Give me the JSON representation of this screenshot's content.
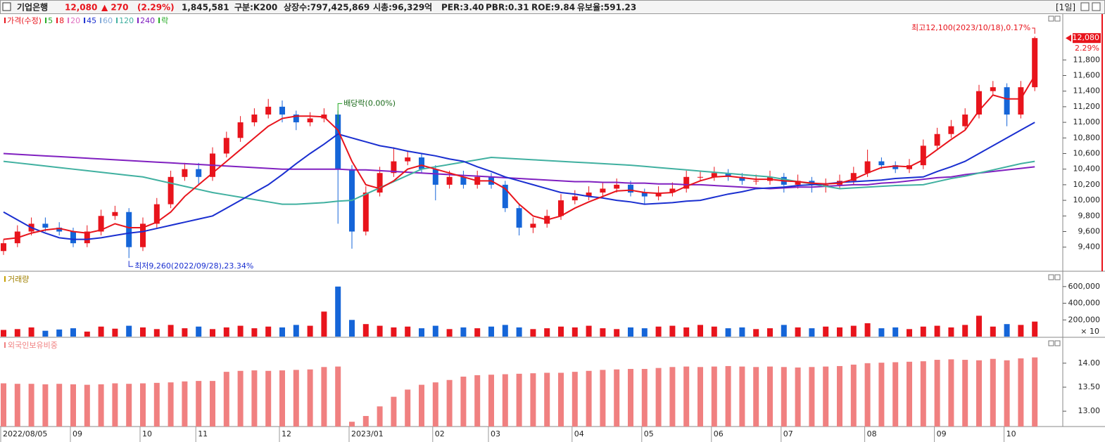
{
  "header": {
    "name": "기업은행",
    "price": "12,080",
    "change": "▲ 270",
    "change_pct": "(2.29%)",
    "volume": "1,845,581",
    "market": "구분:K200",
    "shares": "상장수:797,425,869",
    "cap": "시총:96,329억",
    "per": "PER:3.40",
    "pbr": "PBR:0.31",
    "roe": "ROE:9.84",
    "reserve": "유보율:591.23",
    "period": "[1일]"
  },
  "chart_data": {
    "type": "candlestick",
    "legend": [
      {
        "name": "가격(수정)",
        "color": "#e8141c"
      },
      {
        "name": "5",
        "color": "#22aa22"
      },
      {
        "name": "8",
        "color": "#e8141c"
      },
      {
        "name": "20",
        "color": "#e070c0"
      },
      {
        "name": "45",
        "color": "#1a2fd0"
      },
      {
        "name": "60",
        "color": "#7fa8d8"
      },
      {
        "name": "120",
        "color": "#40b0a0"
      },
      {
        "name": "240",
        "color": "#8020c0"
      },
      {
        "name": "락",
        "color": "#22aa22"
      }
    ],
    "up_color": "#e8141c",
    "down_color": "#1565d8",
    "annotations": {
      "high": "최고12,100(2023/10/18),0.17%",
      "low": "최저9,260(2022/09/28),23.34%",
      "dividend": "배당락(0.00%)",
      "last": "12,080",
      "last_pct": "2.29%"
    },
    "categories": [
      "2022/08/05",
      null,
      null,
      null,
      null,
      "09",
      null,
      null,
      null,
      null,
      "10",
      null,
      null,
      null,
      "11",
      null,
      null,
      null,
      null,
      null,
      "12",
      null,
      null,
      null,
      null,
      "2023/01",
      null,
      null,
      null,
      null,
      null,
      "02",
      null,
      null,
      null,
      "03",
      null,
      null,
      null,
      null,
      null,
      "04",
      null,
      null,
      null,
      null,
      "05",
      null,
      null,
      null,
      null,
      "06",
      null,
      null,
      null,
      null,
      "07",
      null,
      null,
      null,
      null,
      null,
      "08",
      null,
      null,
      null,
      null,
      "09",
      null,
      null,
      null,
      null,
      "10",
      null,
      null
    ],
    "candles": [
      [
        9350,
        9500,
        9300,
        9450
      ],
      [
        9450,
        9680,
        9400,
        9600
      ],
      [
        9600,
        9780,
        9550,
        9700
      ],
      [
        9700,
        9780,
        9600,
        9650
      ],
      [
        9650,
        9720,
        9550,
        9600
      ],
      [
        9600,
        9650,
        9400,
        9450
      ],
      [
        9450,
        9680,
        9400,
        9600
      ],
      [
        9600,
        9880,
        9550,
        9800
      ],
      [
        9800,
        9930,
        9750,
        9850
      ],
      [
        9850,
        9900,
        9260,
        9400
      ],
      [
        9400,
        9780,
        9350,
        9700
      ],
      [
        9700,
        10030,
        9650,
        9950
      ],
      [
        9950,
        10380,
        9900,
        10300
      ],
      [
        10300,
        10480,
        10250,
        10400
      ],
      [
        10400,
        10480,
        10200,
        10300
      ],
      [
        10300,
        10680,
        10250,
        10600
      ],
      [
        10600,
        10880,
        10550,
        10800
      ],
      [
        10800,
        11080,
        10750,
        11000
      ],
      [
        11000,
        11180,
        10950,
        11100
      ],
      [
        11100,
        11300,
        11050,
        11200
      ],
      [
        11200,
        11280,
        11000,
        11100
      ],
      [
        11100,
        11150,
        10900,
        11000
      ],
      [
        11000,
        11130,
        10950,
        11050
      ],
      [
        11050,
        11180,
        11000,
        11100
      ],
      [
        11100,
        11150,
        9700,
        10400
      ],
      [
        10400,
        10450,
        9380,
        9600
      ],
      [
        9600,
        10180,
        9550,
        10100
      ],
      [
        10100,
        10430,
        10050,
        10350
      ],
      [
        10350,
        10680,
        10300,
        10500
      ],
      [
        10500,
        10630,
        10450,
        10550
      ],
      [
        10550,
        10600,
        10350,
        10400
      ],
      [
        10400,
        10450,
        10000,
        10200
      ],
      [
        10200,
        10380,
        10150,
        10300
      ],
      [
        10300,
        10380,
        10150,
        10200
      ],
      [
        10200,
        10380,
        10150,
        10300
      ],
      [
        10300,
        10350,
        10150,
        10200
      ],
      [
        10200,
        10250,
        9850,
        9900
      ],
      [
        9900,
        9950,
        9550,
        9650
      ],
      [
        9650,
        9780,
        9580,
        9700
      ],
      [
        9700,
        9880,
        9650,
        9800
      ],
      [
        9800,
        10080,
        9750,
        10000
      ],
      [
        10000,
        10130,
        9950,
        10050
      ],
      [
        10050,
        10180,
        10000,
        10100
      ],
      [
        10100,
        10230,
        10050,
        10150
      ],
      [
        10150,
        10280,
        10100,
        10200
      ],
      [
        10200,
        10250,
        10050,
        10100
      ],
      [
        10100,
        10150,
        9950,
        10050
      ],
      [
        10050,
        10180,
        10000,
        10100
      ],
      [
        10100,
        10230,
        10050,
        10150
      ],
      [
        10150,
        10380,
        10100,
        10300
      ],
      [
        10300,
        10380,
        10250,
        10300
      ],
      [
        10300,
        10430,
        10250,
        10350
      ],
      [
        10350,
        10400,
        10250,
        10300
      ],
      [
        10300,
        10350,
        10200,
        10250
      ],
      [
        10250,
        10330,
        10200,
        10250
      ],
      [
        10250,
        10380,
        10200,
        10300
      ],
      [
        10300,
        10350,
        10100,
        10200
      ],
      [
        10200,
        10330,
        10150,
        10250
      ],
      [
        10250,
        10300,
        10100,
        10200
      ],
      [
        10200,
        10280,
        10100,
        10200
      ],
      [
        10200,
        10330,
        10150,
        10250
      ],
      [
        10250,
        10430,
        10200,
        10350
      ],
      [
        10350,
        10650,
        10300,
        10500
      ],
      [
        10500,
        10550,
        10400,
        10450
      ],
      [
        10450,
        10500,
        10350,
        10400
      ],
      [
        10400,
        10530,
        10350,
        10450
      ],
      [
        10450,
        10780,
        10400,
        10700
      ],
      [
        10700,
        10930,
        10650,
        10850
      ],
      [
        10850,
        11030,
        10800,
        10950
      ],
      [
        10950,
        11180,
        10900,
        11100
      ],
      [
        11100,
        11480,
        11050,
        11400
      ],
      [
        11400,
        11530,
        11350,
        11450
      ],
      [
        11450,
        11500,
        10950,
        11100
      ],
      [
        11100,
        11530,
        11050,
        11450
      ],
      [
        11450,
        12100,
        11400,
        12080
      ]
    ],
    "ma": [
      {
        "color": "#8020c0",
        "values": [
          10600,
          10590,
          10580,
          10570,
          10560,
          10550,
          10540,
          10530,
          10520,
          10510,
          10500,
          10490,
          10480,
          10470,
          10460,
          10450,
          10440,
          10430,
          10420,
          10410,
          10400,
          10400,
          10400,
          10400,
          10400,
          10390,
          10390,
          10380,
          10370,
          10360,
          10350,
          10340,
          10330,
          10320,
          10310,
          10300,
          10290,
          10280,
          10270,
          10260,
          10250,
          10240,
          10240,
          10230,
          10230,
          10220,
          10220,
          10210,
          10210,
          10200,
          10200,
          10190,
          10180,
          10170,
          10160,
          10150,
          10160,
          10170,
          10170,
          10180,
          10190,
          10200,
          10200,
          10220,
          10230,
          10250,
          10270,
          10290,
          10300,
          10330,
          10350,
          10370,
          10390,
          10410,
          10430
        ]
      },
      {
        "color": "#40b0a0",
        "values": [
          10500,
          10480,
          10460,
          10440,
          10420,
          10400,
          10380,
          10360,
          10340,
          10320,
          10300,
          10260,
          10220,
          10180,
          10140,
          10100,
          10070,
          10040,
          10010,
          9980,
          9950,
          9950,
          9960,
          9970,
          9990,
          10000,
          10080,
          10160,
          10240,
          10320,
          10400,
          10430,
          10460,
          10490,
          10520,
          10550,
          10540,
          10530,
          10520,
          10510,
          10500,
          10490,
          10480,
          10470,
          10460,
          10450,
          10435,
          10420,
          10405,
          10390,
          10375,
          10360,
          10345,
          10330,
          10315,
          10300,
          10270,
          10240,
          10210,
          10180,
          10150,
          10160,
          10170,
          10180,
          10190,
          10195,
          10200,
          10240,
          10280,
          10310,
          10350,
          10390,
          10430,
          10470,
          10500
        ]
      },
      {
        "color": "#1a2fd0",
        "values": [
          9850,
          9750,
          9650,
          9580,
          9520,
          9500,
          9500,
          9520,
          9550,
          9580,
          9600,
          9640,
          9680,
          9720,
          9760,
          9800,
          9900,
          10000,
          10100,
          10200,
          10330,
          10470,
          10600,
          10720,
          10850,
          10800,
          10750,
          10700,
          10670,
          10630,
          10600,
          10570,
          10530,
          10500,
          10430,
          10370,
          10300,
          10250,
          10200,
          10150,
          10100,
          10080,
          10050,
          10030,
          10000,
          9980,
          9950,
          9960,
          9970,
          9990,
          10000,
          10040,
          10080,
          10110,
          10150,
          10160,
          10170,
          10190,
          10200,
          10210,
          10230,
          10240,
          10250,
          10260,
          10280,
          10290,
          10300,
          10370,
          10430,
          10500,
          10600,
          10700,
          10800,
          10900,
          11000
        ]
      },
      {
        "color": "#e8141c",
        "values": [
          9500,
          9520,
          9580,
          9620,
          9640,
          9600,
          9580,
          9620,
          9700,
          9650,
          9650,
          9720,
          9850,
          10050,
          10200,
          10350,
          10500,
          10650,
          10800,
          10950,
          11050,
          11080,
          11080,
          11070,
          10900,
          10500,
          10200,
          10150,
          10250,
          10400,
          10450,
          10400,
          10350,
          10300,
          10250,
          10250,
          10150,
          9950,
          9800,
          9750,
          9800,
          9900,
          9980,
          10050,
          10120,
          10130,
          10100,
          10090,
          10100,
          10180,
          10250,
          10300,
          10310,
          10290,
          10270,
          10270,
          10250,
          10240,
          10220,
          10210,
          10220,
          10270,
          10350,
          10420,
          10440,
          10430,
          10520,
          10650,
          10780,
          10900,
          11150,
          11350,
          11300,
          11300,
          11600
        ]
      }
    ],
    "ylim": [
      9100,
      12370
    ],
    "yticks": [
      {
        "value": 9400,
        "label": "9,400"
      },
      {
        "value": 9600,
        "label": "9,600"
      },
      {
        "value": 9800,
        "label": "9,800"
      },
      {
        "value": 10000,
        "label": "10,000"
      },
      {
        "value": 10200,
        "label": "10,200"
      },
      {
        "value": 10400,
        "label": "10,400"
      },
      {
        "value": 10600,
        "label": "10,600"
      },
      {
        "value": 10800,
        "label": "10,800"
      },
      {
        "value": 11000,
        "label": "11,000"
      },
      {
        "value": 11200,
        "label": "11,200"
      },
      {
        "value": 11400,
        "label": "11,400"
      },
      {
        "value": 11600,
        "label": "11,600"
      },
      {
        "value": 11800,
        "label": "11,800"
      }
    ],
    "volume": {
      "title": "거래량",
      "unit": "× 10",
      "values": [
        80000,
        90000,
        110000,
        70000,
        85000,
        100000,
        60000,
        120000,
        95000,
        130000,
        110000,
        90000,
        140000,
        100000,
        120000,
        90000,
        110000,
        130000,
        100000,
        120000,
        110000,
        140000,
        130000,
        300000,
        600000,
        200000,
        150000,
        130000,
        110000,
        120000,
        100000,
        130000,
        90000,
        110000,
        100000,
        120000,
        140000,
        110000,
        90000,
        100000,
        120000,
        110000,
        130000,
        100000,
        90000,
        110000,
        100000,
        120000,
        130000,
        110000,
        140000,
        120000,
        100000,
        110000,
        90000,
        100000,
        140000,
        110000,
        100000,
        120000,
        110000,
        130000,
        160000,
        100000,
        110000,
        90000,
        120000,
        130000,
        110000,
        140000,
        250000,
        120000,
        150000,
        140000,
        180000
      ],
      "ylim": [
        0,
        750000
      ],
      "yticks": [
        {
          "value": 200000,
          "label": "200,000"
        },
        {
          "value": 400000,
          "label": "400,000"
        },
        {
          "value": 600000,
          "label": "600,000"
        }
      ]
    },
    "foreign": {
      "title": "외국인보유비중",
      "color": "#f08080",
      "values": [
        13.58,
        13.57,
        13.57,
        13.56,
        13.57,
        13.56,
        13.55,
        13.56,
        13.58,
        13.57,
        13.58,
        13.59,
        13.6,
        13.62,
        13.63,
        13.63,
        13.82,
        13.84,
        13.85,
        13.84,
        13.85,
        13.86,
        13.87,
        13.92,
        13.93,
        12.78,
        12.9,
        13.1,
        13.3,
        13.45,
        13.55,
        13.6,
        13.65,
        13.72,
        13.75,
        13.76,
        13.77,
        13.78,
        13.79,
        13.8,
        13.8,
        13.82,
        13.84,
        13.86,
        13.87,
        13.88,
        13.88,
        13.9,
        13.92,
        13.93,
        13.92,
        13.93,
        13.94,
        13.93,
        13.92,
        13.93,
        13.92,
        13.91,
        13.92,
        13.93,
        13.94,
        13.97,
        14.0,
        14.01,
        14.02,
        14.03,
        14.04,
        14.07,
        14.08,
        14.07,
        14.06,
        14.09,
        14.06,
        14.1,
        14.12
      ],
      "ylim": [
        12.68,
        14.51
      ],
      "yticks": [
        {
          "value": 13,
          "label": "13.00"
        },
        {
          "value": 13.5,
          "label": "13.50"
        },
        {
          "value": 14,
          "label": "14.00"
        }
      ]
    }
  }
}
